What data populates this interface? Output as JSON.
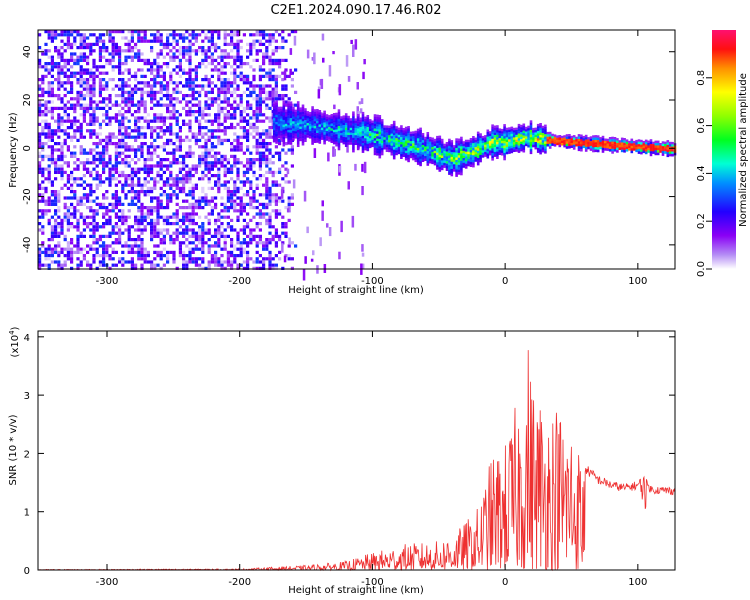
{
  "title": "C2E1.2024.090.17.46.R02",
  "chart_data": [
    {
      "type": "heatmap",
      "xlabel": "Height of straight line (km)",
      "ylabel": "Frequency (Hz)",
      "xlim": [
        -352,
        128
      ],
      "ylim": [
        -50,
        49
      ],
      "xticks": [
        "-300",
        "-200",
        "-100",
        "0",
        "100"
      ],
      "yticks": [
        "40",
        "20",
        "0",
        "-20",
        "-40"
      ],
      "colorbar": {
        "label": "Normalized spectral amplitude",
        "ticks": [
          "0.0",
          "0.2",
          "0.4",
          "0.6",
          "0.8"
        ],
        "range": [
          0,
          1
        ]
      },
      "ridge": {
        "x": [
          -175,
          -150,
          -125,
          -100,
          -80,
          -60,
          -40,
          -25,
          -10,
          0,
          15,
          30,
          50,
          75,
          100,
          128
        ],
        "y": [
          11,
          10,
          8,
          6,
          3,
          0,
          -4,
          -1,
          3,
          3,
          5,
          4,
          3,
          2,
          1,
          0
        ]
      },
      "noise_region": {
        "x_range": [
          -352,
          -170
        ],
        "amplitude": 0.3
      }
    },
    {
      "type": "line",
      "xlabel": "Height of straight line (km)",
      "ylabel": "SNR (10 * v/v)",
      "yscale_label": "(x10",
      "yscale_exp": "4",
      "xlim": [
        -352,
        128
      ],
      "ylim": [
        0,
        4.1
      ],
      "xticks": [
        "-300",
        "-200",
        "-100",
        "0",
        "100"
      ],
      "yticks": [
        "0",
        "1",
        "2",
        "3",
        "4"
      ],
      "color": "#ee3030",
      "envelope": {
        "x": [
          -352,
          -200,
          -150,
          -120,
          -100,
          -75,
          -50,
          -35,
          -20,
          -10,
          0,
          10,
          17,
          18,
          20,
          30,
          40,
          50,
          60,
          70,
          75,
          80,
          90,
          100,
          104,
          110,
          128
        ],
        "y": [
          0.01,
          0.02,
          0.08,
          0.15,
          0.3,
          0.45,
          0.5,
          0.7,
          1.1,
          2.0,
          2.2,
          3.0,
          3.9,
          4.1,
          3.3,
          3.0,
          2.9,
          2.6,
          1.8,
          1.6,
          1.55,
          1.5,
          1.45,
          1.5,
          1.6,
          1.42,
          1.4
        ]
      }
    }
  ]
}
